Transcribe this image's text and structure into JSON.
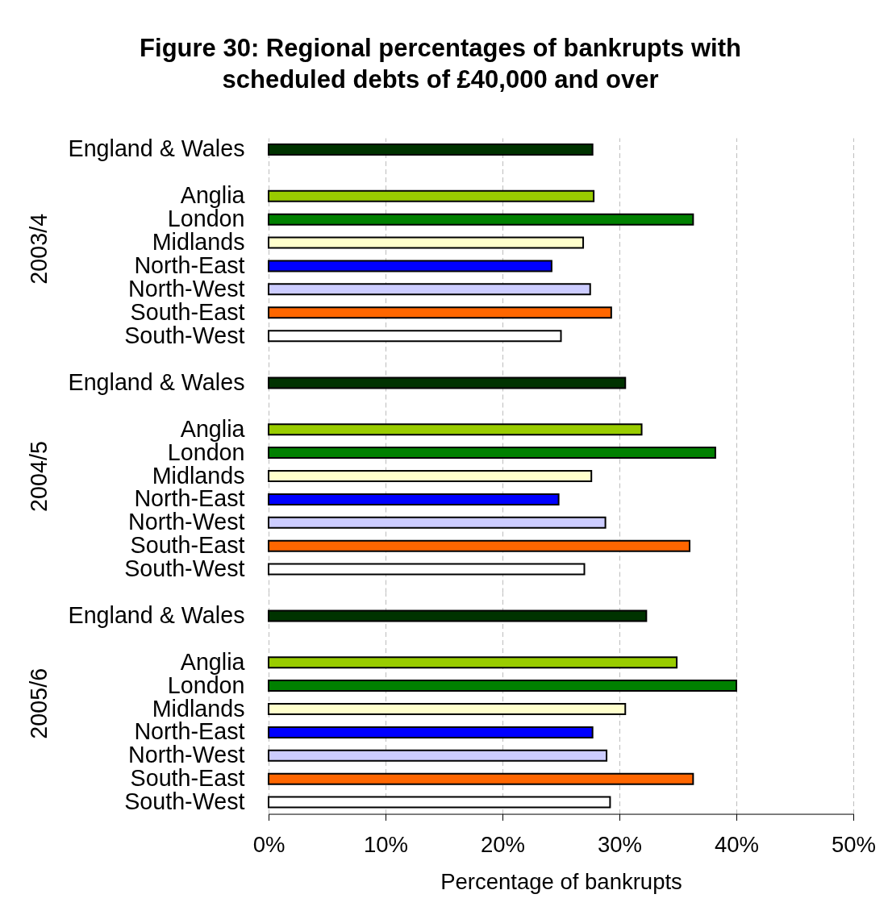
{
  "chart_data": [
    {
      "type": "bar",
      "orientation": "horizontal",
      "title": "Figure 30: Regional percentages of bankrupts with\nscheduled debts of £40,000 and over",
      "ylabel": "2003/4",
      "categories": [
        "England & Wales",
        null,
        "Anglia",
        "London",
        "Midlands",
        "North-East",
        "North-West",
        "South-East",
        "South-West"
      ],
      "values": [
        27.7,
        null,
        27.8,
        36.3,
        26.9,
        24.2,
        27.5,
        29.3,
        25.0
      ],
      "colors": [
        "#003300",
        null,
        "#99cc00",
        "#008000",
        "#ffffcc",
        "#0000ff",
        "#ccccff",
        "#ff6600",
        "#ffffff"
      ],
      "xlim": [
        0,
        50
      ],
      "xticks": [
        {
          "value": 0,
          "label": null
        },
        {
          "value": 10,
          "label": null
        },
        {
          "value": 20,
          "label": null
        },
        {
          "value": 30,
          "label": null
        },
        {
          "value": 40,
          "label": null
        },
        {
          "value": 50,
          "label": null
        }
      ],
      "grid": "x",
      "tick_labels": "y"
    },
    {
      "type": "bar",
      "orientation": "horizontal",
      "ylabel": "2004/5",
      "categories": [
        "England & Wales",
        null,
        "Anglia",
        "London",
        "Midlands",
        "North-East",
        "North-West",
        "South-East",
        "South-West"
      ],
      "values": [
        30.5,
        null,
        31.9,
        38.2,
        27.6,
        24.8,
        28.8,
        36.0,
        27.0
      ],
      "colors": [
        "#003300",
        null,
        "#99cc00",
        "#008000",
        "#ffffcc",
        "#0000ff",
        "#ccccff",
        "#ff6600",
        "#ffffff"
      ],
      "xlim": [
        0,
        50
      ],
      "xticks": [
        {
          "value": 0,
          "label": null
        },
        {
          "value": 10,
          "label": null
        },
        {
          "value": 20,
          "label": null
        },
        {
          "value": 30,
          "label": null
        },
        {
          "value": 40,
          "label": null
        },
        {
          "value": 50,
          "label": null
        }
      ],
      "grid": "x",
      "tick_labels": "y"
    },
    {
      "type": "bar",
      "orientation": "horizontal",
      "ylabel": "2005/6",
      "xlabel": "Percentage of bankrupts",
      "categories": [
        "England & Wales",
        null,
        "Anglia",
        "London",
        "Midlands",
        "North-East",
        "North-West",
        "South-East",
        "South-West"
      ],
      "values": [
        32.3,
        null,
        34.9,
        40.0,
        30.5,
        27.7,
        28.9,
        36.3,
        29.2
      ],
      "colors": [
        "#003300",
        null,
        "#99cc00",
        "#008000",
        "#ffffcc",
        "#0000ff",
        "#ccccff",
        "#ff6600",
        "#ffffff"
      ],
      "xlim": [
        0,
        50
      ],
      "xticks": [
        {
          "value": 0,
          "label": "0%"
        },
        {
          "value": 10,
          "label": "10%"
        },
        {
          "value": 20,
          "label": "20%"
        },
        {
          "value": 30,
          "label": "30%"
        },
        {
          "value": 40,
          "label": "40%"
        },
        {
          "value": 50,
          "label": "50%"
        }
      ],
      "grid": "x"
    }
  ]
}
